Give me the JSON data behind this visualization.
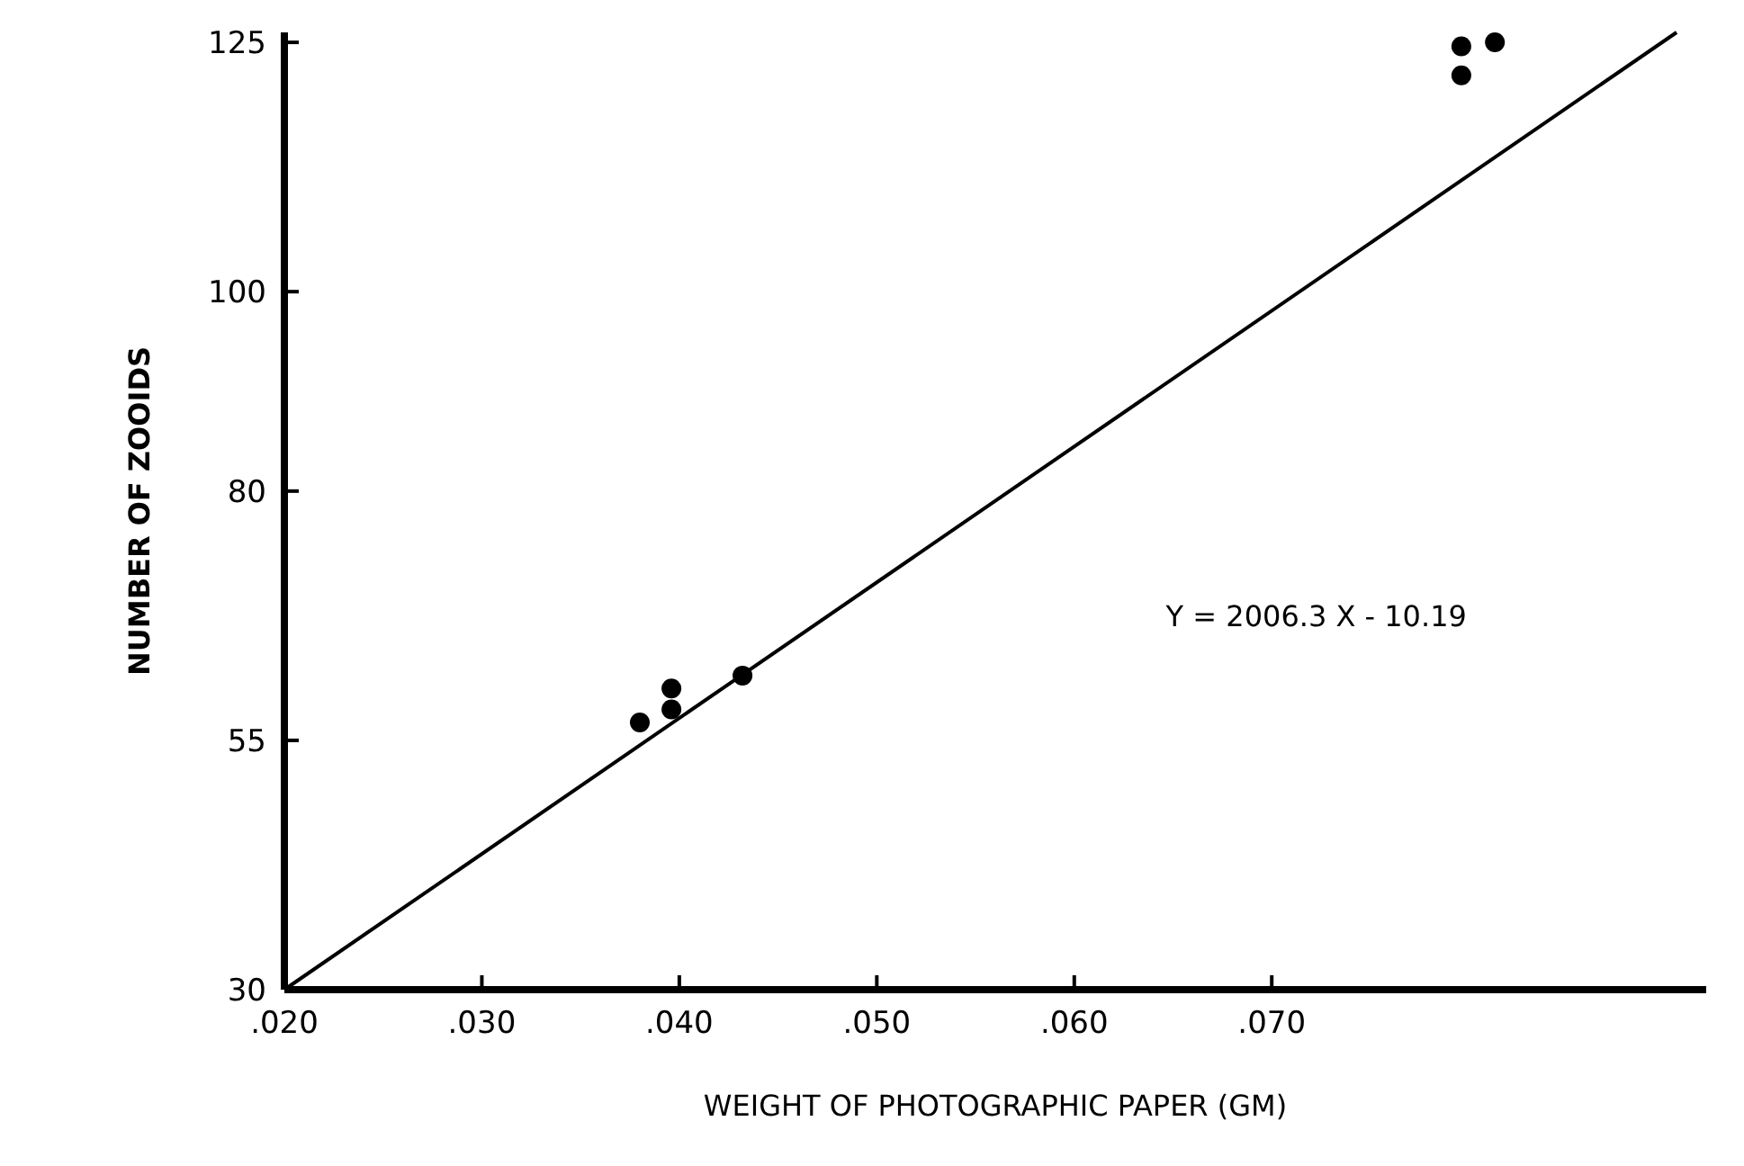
{
  "chart_data": {
    "type": "scatter",
    "xlabel": "WEIGHT OF PHOTOGRAPHIC PAPER (GM)",
    "ylabel": "NUMBER OF ZOOIDS",
    "xlim": [
      0.02,
      0.092
    ],
    "ylim": [
      30,
      126
    ],
    "xticks": [
      {
        "value": 0.02,
        "label": ".020"
      },
      {
        "value": 0.03,
        "label": ".030"
      },
      {
        "value": 0.04,
        "label": ".040"
      },
      {
        "value": 0.05,
        "label": ".050"
      },
      {
        "value": 0.06,
        "label": ".060"
      },
      {
        "value": 0.07,
        "label": ".070"
      }
    ],
    "yticks": [
      30,
      55,
      80,
      100,
      125
    ],
    "series": [
      {
        "color": "#000000",
        "marker": "circle",
        "x": [
          0.038,
          0.0396,
          0.0396,
          0.0432,
          0.0796,
          0.0796,
          0.0813
        ],
        "values": [
          56.8,
          60.2,
          58.1,
          61.5,
          124.6,
          121.7,
          125
        ]
      },
      {
        "type": "line",
        "color": "#000000",
        "x": [
          0.02,
          0.0905
        ],
        "values": [
          30,
          126
        ]
      }
    ],
    "annotations": [
      "Y = 2006.3 X - 10.19"
    ]
  }
}
